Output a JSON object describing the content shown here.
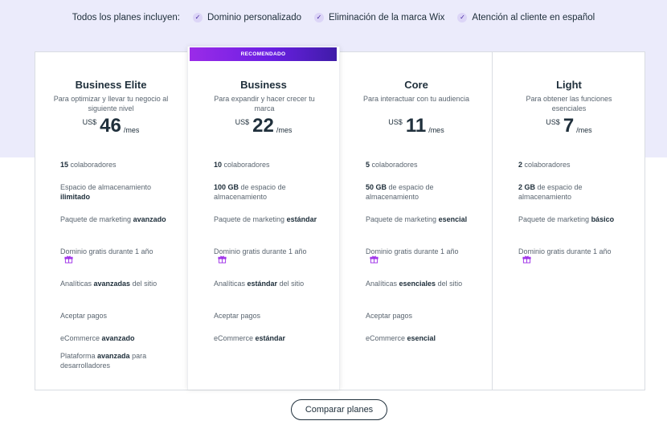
{
  "includes": {
    "label": "Todos los planes incluyen:",
    "items": [
      "Dominio personalizado",
      "Eliminación de la marca Wix",
      "Atención al cliente en español"
    ]
  },
  "ribbon": "RECOMENDADO",
  "currency": "US$",
  "per": "/mes",
  "plans": [
    {
      "name": "Business Elite",
      "desc": "Para optimizar y llevar tu negocio al siguiente nivel",
      "price": "46",
      "features": [
        {
          "b": "15",
          "t": " colaboradores"
        },
        {
          "t": "Espacio de almacenamiento ",
          "b": "ilimitado"
        },
        {
          "t": "Paquete de marketing ",
          "b": "avanzado"
        },
        {
          "t": "Dominio gratis durante 1 año"
        },
        {
          "t": "Analíticas ",
          "b": "avanzadas",
          "t2": " del sitio"
        },
        {
          "t": "Aceptar pagos"
        },
        {
          "t": "eCommerce ",
          "b": "avanzado"
        },
        {
          "t": "Plataforma ",
          "b": "avanzada",
          "t2": " para desarrolladores"
        }
      ]
    },
    {
      "name": "Business",
      "desc": "Para expandir y hacer crecer tu marca",
      "price": "22",
      "features": [
        {
          "b": "10",
          "t": " colaboradores"
        },
        {
          "b": "100 GB",
          "t": " de espacio de almacenamiento"
        },
        {
          "t": "Paquete de marketing ",
          "b": "estándar"
        },
        {
          "t": "Dominio gratis durante 1 año"
        },
        {
          "t": "Analíticas ",
          "b": "estándar",
          "t2": " del sitio"
        },
        {
          "t": "Aceptar pagos"
        },
        {
          "t": "eCommerce ",
          "b": "estándar"
        }
      ]
    },
    {
      "name": "Core",
      "desc": "Para interactuar con tu audiencia",
      "price": "11",
      "features": [
        {
          "b": "5",
          "t": " colaboradores"
        },
        {
          "b": "50 GB",
          "t": " de espacio de almacenamiento"
        },
        {
          "t": "Paquete de marketing ",
          "b": "esencial"
        },
        {
          "t": "Dominio gratis durante 1 año"
        },
        {
          "t": "Analíticas ",
          "b": "esenciales",
          "t2": " del sitio"
        },
        {
          "t": "Aceptar pagos"
        },
        {
          "t": "eCommerce ",
          "b": "esencial"
        }
      ]
    },
    {
      "name": "Light",
      "desc": "Para obtener las funciones esenciales",
      "price": "7",
      "features": [
        {
          "b": "2",
          "t": " colaboradores"
        },
        {
          "b": "2 GB",
          "t": " de espacio de almacenamiento"
        },
        {
          "t": "Paquete de marketing ",
          "b": "básico"
        },
        {
          "t": "Dominio gratis durante 1 año"
        }
      ]
    }
  ],
  "compare_button": "Comparar planes",
  "colors": {
    "accent": "#7b2be8",
    "hero_bg": "#ebebfb",
    "text": "#20303c"
  }
}
